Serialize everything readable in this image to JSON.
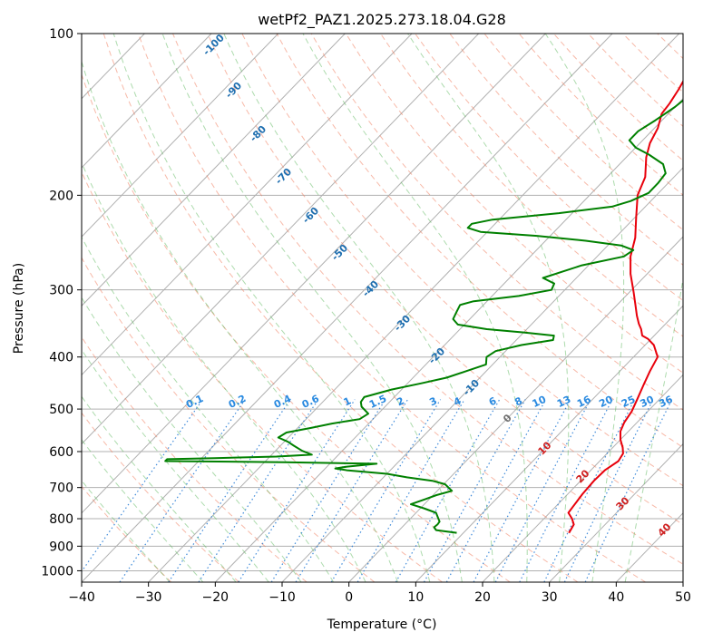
{
  "chart_data": {
    "type": "line",
    "title": "wetPf2_PAZ1.2025.273.18.04.G28",
    "xlabel": "Temperature (°C)",
    "ylabel": "Pressure (hPa)",
    "xlim": [
      -40,
      50
    ],
    "ylim": [
      1050,
      100
    ],
    "y_scale": "log",
    "grid": true,
    "x_ticks": [
      "−40",
      "−30",
      "−20",
      "−10",
      "0",
      "10",
      "20",
      "30",
      "40",
      "50"
    ],
    "y_ticks": [
      {
        "p": 100,
        "label": "100"
      },
      {
        "p": 200,
        "label": "200"
      },
      {
        "p": 300,
        "label": "300"
      },
      {
        "p": 400,
        "label": "400"
      },
      {
        "p": 500,
        "label": "500"
      },
      {
        "p": 600,
        "label": "600"
      },
      {
        "p": 700,
        "label": "700"
      },
      {
        "p": 800,
        "label": "800"
      },
      {
        "p": 900,
        "label": "900"
      },
      {
        "p": 1000,
        "label": "1000"
      }
    ],
    "series": [
      {
        "color": "#e8000b",
        "role": "temperature",
        "points": [
          [
            25.8,
            850
          ],
          [
            25.3,
            820
          ],
          [
            24.2,
            800
          ],
          [
            22.8,
            780
          ],
          [
            22.6,
            760
          ],
          [
            22.2,
            720
          ],
          [
            22.0,
            680
          ],
          [
            22.1,
            650
          ],
          [
            22.8,
            625
          ],
          [
            22.4,
            605
          ],
          [
            21.5,
            590
          ],
          [
            20.0,
            570
          ],
          [
            18.8,
            550
          ],
          [
            18.1,
            530
          ],
          [
            17.6,
            505
          ],
          [
            16.7,
            480
          ],
          [
            15.5,
            450
          ],
          [
            14.5,
            425
          ],
          [
            13.6,
            400
          ],
          [
            11.3,
            380
          ],
          [
            9.5,
            370
          ],
          [
            8.2,
            365
          ],
          [
            7.1,
            355
          ],
          [
            6.0,
            347
          ],
          [
            4.5,
            335
          ],
          [
            2.5,
            318
          ],
          [
            0.5,
            302
          ],
          [
            -2.5,
            280
          ],
          [
            -5.0,
            260
          ],
          [
            -7.0,
            240
          ],
          [
            -9.8,
            220
          ],
          [
            -12.8,
            200
          ],
          [
            -14.3,
            185
          ],
          [
            -17.0,
            170
          ],
          [
            -18.5,
            160
          ],
          [
            -19.5,
            150
          ],
          [
            -21.0,
            141
          ],
          [
            -21.3,
            135
          ],
          [
            -22.0,
            127
          ],
          [
            -22.8,
            120
          ],
          [
            -23.2,
            115
          ],
          [
            -23.5,
            110
          ],
          [
            -24.0,
            103
          ],
          [
            -24.5,
            100
          ]
        ]
      },
      {
        "color": "#008000",
        "role": "dewpoint",
        "points": [
          [
            9.0,
            850
          ],
          [
            5.5,
            840
          ],
          [
            4.8,
            830
          ],
          [
            4.9,
            820
          ],
          [
            4.8,
            810
          ],
          [
            4.2,
            800
          ],
          [
            3.0,
            780
          ],
          [
            0.5,
            765
          ],
          [
            -2.0,
            752
          ],
          [
            -0.5,
            735
          ],
          [
            0.5,
            723
          ],
          [
            2.2,
            710
          ],
          [
            0.2,
            690
          ],
          [
            -2.2,
            680
          ],
          [
            -6.5,
            670
          ],
          [
            -10.0,
            660
          ],
          [
            -16.5,
            650
          ],
          [
            -18.5,
            645
          ],
          [
            -17.0,
            640
          ],
          [
            -13.0,
            632
          ],
          [
            -27.0,
            628
          ],
          [
            -45.0,
            625
          ],
          [
            -45.0,
            620
          ],
          [
            -38.0,
            617
          ],
          [
            -29.0,
            613
          ],
          [
            -24.0,
            608
          ],
          [
            -26.0,
            598
          ],
          [
            -28.0,
            585
          ],
          [
            -29.5,
            575
          ],
          [
            -31.5,
            565
          ],
          [
            -31.0,
            553
          ],
          [
            -28.0,
            542
          ],
          [
            -25.5,
            532
          ],
          [
            -22.0,
            522
          ],
          [
            -21.5,
            510
          ],
          [
            -23.5,
            495
          ],
          [
            -24.3,
            485
          ],
          [
            -24.5,
            475
          ],
          [
            -21.5,
            460
          ],
          [
            -18.0,
            448
          ],
          [
            -15.0,
            437
          ],
          [
            -13.0,
            425
          ],
          [
            -11.0,
            413
          ],
          [
            -12.0,
            400
          ],
          [
            -11.5,
            390
          ],
          [
            -8.5,
            380
          ],
          [
            -4.5,
            372
          ],
          [
            -5.0,
            365
          ],
          [
            -10.0,
            360
          ],
          [
            -16.0,
            355
          ],
          [
            -21.0,
            348
          ],
          [
            -22.5,
            340
          ],
          [
            -23.0,
            330
          ],
          [
            -23.5,
            320
          ],
          [
            -22.0,
            315
          ],
          [
            -16.0,
            308
          ],
          [
            -12.0,
            300
          ],
          [
            -12.5,
            292
          ],
          [
            -15.0,
            285
          ],
          [
            -11.0,
            270
          ],
          [
            -6.0,
            260
          ],
          [
            -5.5,
            253
          ],
          [
            -8.0,
            248
          ],
          [
            -14.0,
            243
          ],
          [
            -22.0,
            238
          ],
          [
            -31.0,
            234
          ],
          [
            -33.5,
            230
          ],
          [
            -33.5,
            226
          ],
          [
            -31.0,
            222
          ],
          [
            -22.0,
            216
          ],
          [
            -15.0,
            210
          ],
          [
            -13.0,
            205
          ],
          [
            -11.5,
            198
          ],
          [
            -11.5,
            190
          ],
          [
            -11.8,
            182
          ],
          [
            -13.5,
            175
          ],
          [
            -17.0,
            168
          ],
          [
            -20.0,
            163
          ],
          [
            -22.0,
            158
          ],
          [
            -22.0,
            152
          ],
          [
            -21.0,
            145
          ],
          [
            -20.0,
            137
          ],
          [
            -19.5,
            130
          ],
          [
            -20.5,
            125
          ],
          [
            -21.0,
            120
          ],
          [
            -21.2,
            113
          ],
          [
            -22.0,
            107
          ],
          [
            -23.0,
            102
          ],
          [
            -23.5,
            100
          ]
        ]
      }
    ],
    "dry_adiabat_labels": [
      "-100",
      "-90",
      "-80",
      "-70",
      "-60",
      "-50",
      "-40",
      "-30",
      "-20",
      "-10",
      "0",
      "10",
      "20",
      "30",
      "40"
    ],
    "mixing_ratio_labels": [
      "0.1",
      "0.2",
      "0.4",
      "0.6",
      "1",
      "1.5",
      "2",
      "3",
      "4",
      "6",
      "8",
      "10",
      "13",
      "16",
      "20",
      "25",
      "30",
      "36"
    ]
  }
}
